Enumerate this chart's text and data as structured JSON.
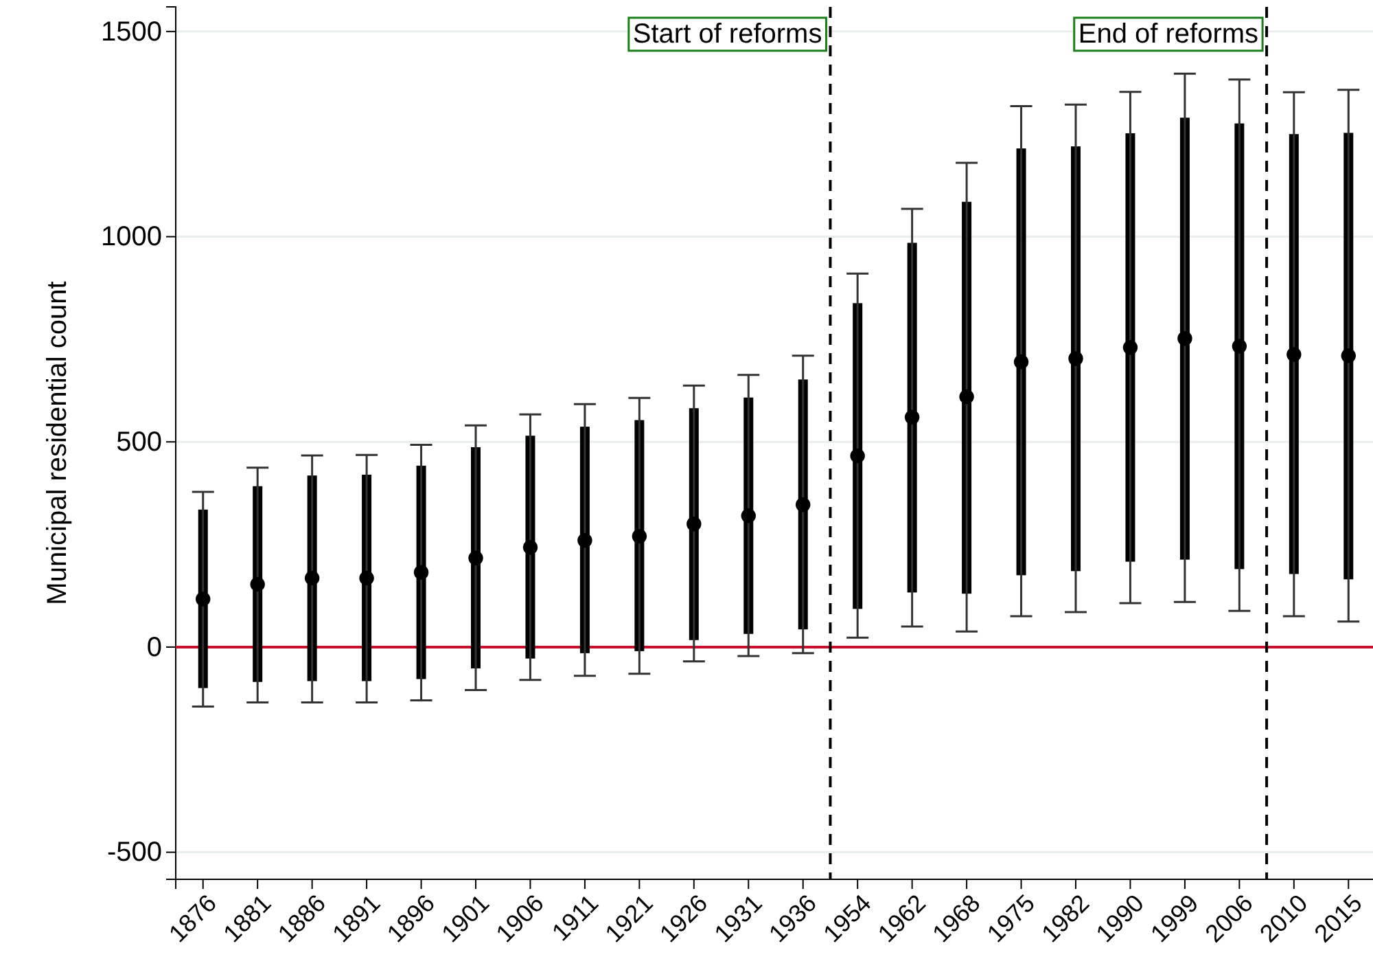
{
  "chart_data": {
    "type": "scatter",
    "ylabel": "Municipal residential count",
    "categories": [
      "1876",
      "1881",
      "1886",
      "1891",
      "1896",
      "1901",
      "1906",
      "1911",
      "1921",
      "1926",
      "1931",
      "1936",
      "1954",
      "1962",
      "1968",
      "1975",
      "1982",
      "1990",
      "1999",
      "2006",
      "2010",
      "2015"
    ],
    "series": [
      {
        "type": "bar",
        "color": "#000000",
        "base": [
          -100,
          -85,
          -83,
          -83,
          -78,
          -52,
          -28,
          -15,
          -10,
          17,
          32,
          43,
          93,
          133,
          130,
          175,
          185,
          208,
          213,
          190,
          178,
          165
        ],
        "values": [
          435,
          477,
          501,
          503,
          520,
          539,
          543,
          552,
          563,
          565,
          576,
          609,
          745,
          852,
          955,
          1040,
          1035,
          1044,
          1077,
          1086,
          1072,
          1088
        ]
      },
      {
        "color": "#000000",
        "values": [
          117,
          153,
          168,
          168,
          182,
          217,
          243,
          260,
          270,
          300,
          320,
          347,
          466,
          560,
          610,
          695,
          703,
          730,
          752,
          733,
          713,
          710
        ],
        "errors": [
          [
            -145,
            378
          ],
          [
            -135,
            437
          ],
          [
            -135,
            467
          ],
          [
            -135,
            468
          ],
          [
            -130,
            493
          ],
          [
            -105,
            540
          ],
          [
            -80,
            567
          ],
          [
            -70,
            592
          ],
          [
            -65,
            607
          ],
          [
            -35,
            637
          ],
          [
            -22,
            663
          ],
          [
            -15,
            710
          ],
          [
            23,
            910
          ],
          [
            50,
            1068
          ],
          [
            38,
            1180
          ],
          [
            75,
            1318
          ],
          [
            85,
            1322
          ],
          [
            107,
            1353
          ],
          [
            110,
            1397
          ],
          [
            88,
            1383
          ],
          [
            75,
            1352
          ],
          [
            62,
            1358
          ]
        ]
      }
    ],
    "ylim": [
      -566,
      1560
    ],
    "yticks": [
      -500,
      0,
      500,
      1000,
      1500
    ],
    "grid": "y",
    "marker": "circle",
    "annotations": [
      "Start of reforms",
      "End of reforms"
    ],
    "ref_lines": [
      {
        "axis": "y",
        "value": 0,
        "color": "#c8102e",
        "line_style": "solid"
      }
    ]
  }
}
